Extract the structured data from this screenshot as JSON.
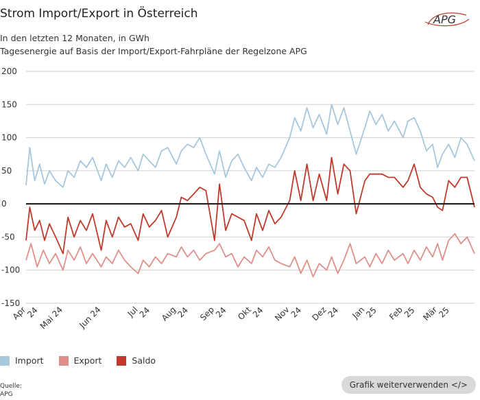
{
  "header": {
    "title": "Strom Import/Export in Österreich",
    "subtitle1": "In den letzten 12 Monaten, in GWh",
    "subtitle2": "Tagesenergie auf Basis der Import/Export-Fahrpläne der Regelzone APG",
    "logo_text": "APG"
  },
  "legend": {
    "items": [
      {
        "label": "Import",
        "color": "#a7c7dc"
      },
      {
        "label": "Export",
        "color": "#e08f8a"
      },
      {
        "label": "Saldo",
        "color": "#c0392b"
      }
    ]
  },
  "footer": {
    "source_label": "Quelle:",
    "source_value": "APG",
    "reuse_button": "Grafik weiterverwenden </>"
  },
  "chart_data": {
    "type": "line",
    "title": "Strom Import/Export in Österreich",
    "ylabel": "GWh",
    "ylim": [
      -150,
      200
    ],
    "yticks": [
      -150,
      -100,
      -50,
      0,
      50,
      100,
      150,
      200
    ],
    "grid": true,
    "legend": "bottom-left",
    "x_start": "2024-04-01",
    "x_end": "2025-03-31",
    "xticks": [
      {
        "line1": "Apr",
        "line2": "24",
        "date": "2024-04-01"
      },
      {
        "line1": "Mai 24",
        "line2": "",
        "date": "2024-05-01"
      },
      {
        "line1": "Jun 24",
        "line2": "",
        "date": "2024-06-01"
      },
      {
        "line1": "Jul",
        "line2": "24",
        "date": "2024-07-01"
      },
      {
        "line1": "Aug",
        "line2": "24",
        "date": "2024-08-01"
      },
      {
        "line1": "Sep",
        "line2": "24",
        "date": "2024-09-01"
      },
      {
        "line1": "Okt",
        "line2": "24",
        "date": "2024-10-01"
      },
      {
        "line1": "Nov",
        "line2": "24",
        "date": "2024-11-01"
      },
      {
        "line1": "Dez",
        "line2": "24",
        "date": "2024-12-01"
      },
      {
        "line1": "Jan",
        "line2": "25",
        "date": "2025-01-01"
      },
      {
        "line1": "Feb",
        "line2": "25",
        "date": "2025-02-01"
      },
      {
        "line1": "Mär",
        "line2": "25",
        "date": "2025-03-01"
      }
    ],
    "series": [
      {
        "name": "Import",
        "color": "#a7c7dc",
        "points": [
          [
            "2024-04-01",
            28
          ],
          [
            "2024-04-04",
            85
          ],
          [
            "2024-04-08",
            35
          ],
          [
            "2024-04-12",
            60
          ],
          [
            "2024-04-16",
            30
          ],
          [
            "2024-04-20",
            50
          ],
          [
            "2024-04-25",
            35
          ],
          [
            "2024-05-01",
            25
          ],
          [
            "2024-05-05",
            50
          ],
          [
            "2024-05-10",
            40
          ],
          [
            "2024-05-15",
            65
          ],
          [
            "2024-05-20",
            55
          ],
          [
            "2024-05-25",
            70
          ],
          [
            "2024-06-01",
            35
          ],
          [
            "2024-06-05",
            60
          ],
          [
            "2024-06-10",
            40
          ],
          [
            "2024-06-15",
            65
          ],
          [
            "2024-06-20",
            55
          ],
          [
            "2024-06-25",
            70
          ],
          [
            "2024-07-01",
            50
          ],
          [
            "2024-07-05",
            75
          ],
          [
            "2024-07-10",
            65
          ],
          [
            "2024-07-15",
            55
          ],
          [
            "2024-07-20",
            80
          ],
          [
            "2024-07-25",
            85
          ],
          [
            "2024-08-01",
            60
          ],
          [
            "2024-08-05",
            80
          ],
          [
            "2024-08-10",
            90
          ],
          [
            "2024-08-15",
            85
          ],
          [
            "2024-08-20",
            100
          ],
          [
            "2024-08-25",
            75
          ],
          [
            "2024-09-01",
            45
          ],
          [
            "2024-09-05",
            80
          ],
          [
            "2024-09-10",
            40
          ],
          [
            "2024-09-15",
            65
          ],
          [
            "2024-09-20",
            75
          ],
          [
            "2024-09-25",
            55
          ],
          [
            "2024-10-01",
            35
          ],
          [
            "2024-10-05",
            55
          ],
          [
            "2024-10-10",
            40
          ],
          [
            "2024-10-15",
            60
          ],
          [
            "2024-10-20",
            55
          ],
          [
            "2024-10-25",
            70
          ],
          [
            "2024-11-01",
            100
          ],
          [
            "2024-11-05",
            130
          ],
          [
            "2024-11-10",
            110
          ],
          [
            "2024-11-15",
            145
          ],
          [
            "2024-11-20",
            115
          ],
          [
            "2024-11-25",
            135
          ],
          [
            "2024-12-01",
            105
          ],
          [
            "2024-12-05",
            150
          ],
          [
            "2024-12-10",
            120
          ],
          [
            "2024-12-15",
            145
          ],
          [
            "2024-12-20",
            110
          ],
          [
            "2024-12-25",
            75
          ],
          [
            "2025-01-01",
            115
          ],
          [
            "2025-01-05",
            140
          ],
          [
            "2025-01-10",
            120
          ],
          [
            "2025-01-15",
            135
          ],
          [
            "2025-01-20",
            110
          ],
          [
            "2025-01-25",
            125
          ],
          [
            "2025-02-01",
            100
          ],
          [
            "2025-02-05",
            125
          ],
          [
            "2025-02-10",
            130
          ],
          [
            "2025-02-15",
            110
          ],
          [
            "2025-02-20",
            80
          ],
          [
            "2025-02-25",
            90
          ],
          [
            "2025-03-01",
            55
          ],
          [
            "2025-03-05",
            75
          ],
          [
            "2025-03-10",
            90
          ],
          [
            "2025-03-15",
            70
          ],
          [
            "2025-03-20",
            100
          ],
          [
            "2025-03-25",
            90
          ],
          [
            "2025-03-31",
            65
          ]
        ]
      },
      {
        "name": "Export",
        "color": "#e08f8a",
        "points": [
          [
            "2024-04-01",
            -85
          ],
          [
            "2024-04-05",
            -60
          ],
          [
            "2024-04-10",
            -95
          ],
          [
            "2024-04-15",
            -70
          ],
          [
            "2024-04-20",
            -90
          ],
          [
            "2024-04-25",
            -75
          ],
          [
            "2024-05-01",
            -100
          ],
          [
            "2024-05-05",
            -70
          ],
          [
            "2024-05-10",
            -85
          ],
          [
            "2024-05-15",
            -65
          ],
          [
            "2024-05-20",
            -90
          ],
          [
            "2024-05-25",
            -75
          ],
          [
            "2024-06-01",
            -95
          ],
          [
            "2024-06-05",
            -80
          ],
          [
            "2024-06-10",
            -90
          ],
          [
            "2024-06-15",
            -70
          ],
          [
            "2024-06-20",
            -85
          ],
          [
            "2024-06-25",
            -95
          ],
          [
            "2024-07-01",
            -105
          ],
          [
            "2024-07-05",
            -85
          ],
          [
            "2024-07-10",
            -95
          ],
          [
            "2024-07-15",
            -80
          ],
          [
            "2024-07-20",
            -90
          ],
          [
            "2024-07-25",
            -75
          ],
          [
            "2024-08-01",
            -80
          ],
          [
            "2024-08-05",
            -65
          ],
          [
            "2024-08-10",
            -80
          ],
          [
            "2024-08-15",
            -70
          ],
          [
            "2024-08-20",
            -85
          ],
          [
            "2024-08-25",
            -75
          ],
          [
            "2024-09-01",
            -70
          ],
          [
            "2024-09-05",
            -60
          ],
          [
            "2024-09-10",
            -80
          ],
          [
            "2024-09-15",
            -75
          ],
          [
            "2024-09-20",
            -95
          ],
          [
            "2024-09-25",
            -80
          ],
          [
            "2024-10-01",
            -90
          ],
          [
            "2024-10-05",
            -70
          ],
          [
            "2024-10-10",
            -80
          ],
          [
            "2024-10-15",
            -65
          ],
          [
            "2024-10-20",
            -85
          ],
          [
            "2024-10-25",
            -90
          ],
          [
            "2024-11-01",
            -95
          ],
          [
            "2024-11-05",
            -80
          ],
          [
            "2024-11-10",
            -105
          ],
          [
            "2024-11-15",
            -85
          ],
          [
            "2024-11-20",
            -110
          ],
          [
            "2024-11-25",
            -90
          ],
          [
            "2024-12-01",
            -100
          ],
          [
            "2024-12-05",
            -80
          ],
          [
            "2024-12-10",
            -105
          ],
          [
            "2024-12-15",
            -85
          ],
          [
            "2024-12-20",
            -60
          ],
          [
            "2024-12-25",
            -90
          ],
          [
            "2025-01-01",
            -80
          ],
          [
            "2025-01-05",
            -95
          ],
          [
            "2025-01-10",
            -75
          ],
          [
            "2025-01-15",
            -90
          ],
          [
            "2025-01-20",
            -70
          ],
          [
            "2025-01-25",
            -85
          ],
          [
            "2025-02-01",
            -75
          ],
          [
            "2025-02-05",
            -90
          ],
          [
            "2025-02-10",
            -70
          ],
          [
            "2025-02-15",
            -85
          ],
          [
            "2025-02-20",
            -65
          ],
          [
            "2025-02-25",
            -80
          ],
          [
            "2025-03-01",
            -60
          ],
          [
            "2025-03-05",
            -85
          ],
          [
            "2025-03-10",
            -55
          ],
          [
            "2025-03-15",
            -45
          ],
          [
            "2025-03-20",
            -60
          ],
          [
            "2025-03-25",
            -50
          ],
          [
            "2025-03-31",
            -75
          ]
        ]
      },
      {
        "name": "Saldo",
        "color": "#c0392b",
        "points": [
          [
            "2024-04-01",
            -55
          ],
          [
            "2024-04-04",
            -5
          ],
          [
            "2024-04-08",
            -40
          ],
          [
            "2024-04-12",
            -25
          ],
          [
            "2024-04-16",
            -55
          ],
          [
            "2024-04-20",
            -30
          ],
          [
            "2024-04-25",
            -50
          ],
          [
            "2024-05-01",
            -75
          ],
          [
            "2024-05-05",
            -20
          ],
          [
            "2024-05-10",
            -50
          ],
          [
            "2024-05-15",
            -25
          ],
          [
            "2024-05-20",
            -40
          ],
          [
            "2024-05-25",
            -15
          ],
          [
            "2024-06-01",
            -70
          ],
          [
            "2024-06-05",
            -25
          ],
          [
            "2024-06-10",
            -50
          ],
          [
            "2024-06-15",
            -20
          ],
          [
            "2024-06-20",
            -35
          ],
          [
            "2024-06-25",
            -30
          ],
          [
            "2024-07-01",
            -55
          ],
          [
            "2024-07-05",
            -15
          ],
          [
            "2024-07-10",
            -35
          ],
          [
            "2024-07-15",
            -25
          ],
          [
            "2024-07-20",
            -10
          ],
          [
            "2024-07-25",
            -50
          ],
          [
            "2024-08-01",
            -20
          ],
          [
            "2024-08-05",
            10
          ],
          [
            "2024-08-10",
            5
          ],
          [
            "2024-08-15",
            15
          ],
          [
            "2024-08-20",
            25
          ],
          [
            "2024-08-25",
            20
          ],
          [
            "2024-09-01",
            -55
          ],
          [
            "2024-09-05",
            30
          ],
          [
            "2024-09-10",
            -40
          ],
          [
            "2024-09-15",
            -15
          ],
          [
            "2024-09-20",
            -20
          ],
          [
            "2024-09-25",
            -25
          ],
          [
            "2024-10-01",
            -55
          ],
          [
            "2024-10-05",
            -15
          ],
          [
            "2024-10-10",
            -40
          ],
          [
            "2024-10-15",
            -10
          ],
          [
            "2024-10-20",
            -30
          ],
          [
            "2024-10-25",
            -20
          ],
          [
            "2024-11-01",
            5
          ],
          [
            "2024-11-05",
            50
          ],
          [
            "2024-11-10",
            5
          ],
          [
            "2024-11-15",
            60
          ],
          [
            "2024-11-20",
            5
          ],
          [
            "2024-11-25",
            45
          ],
          [
            "2024-12-01",
            5
          ],
          [
            "2024-12-05",
            70
          ],
          [
            "2024-12-10",
            15
          ],
          [
            "2024-12-15",
            60
          ],
          [
            "2024-12-20",
            50
          ],
          [
            "2024-12-25",
            -15
          ],
          [
            "2025-01-01",
            35
          ],
          [
            "2025-01-05",
            45
          ],
          [
            "2025-01-10",
            45
          ],
          [
            "2025-01-15",
            45
          ],
          [
            "2025-01-20",
            40
          ],
          [
            "2025-01-25",
            40
          ],
          [
            "2025-02-01",
            25
          ],
          [
            "2025-02-05",
            35
          ],
          [
            "2025-02-10",
            60
          ],
          [
            "2025-02-15",
            25
          ],
          [
            "2025-02-20",
            15
          ],
          [
            "2025-02-25",
            10
          ],
          [
            "2025-03-01",
            -5
          ],
          [
            "2025-03-05",
            -10
          ],
          [
            "2025-03-10",
            35
          ],
          [
            "2025-03-15",
            25
          ],
          [
            "2025-03-20",
            40
          ],
          [
            "2025-03-25",
            40
          ],
          [
            "2025-03-31",
            -5
          ]
        ]
      }
    ]
  }
}
